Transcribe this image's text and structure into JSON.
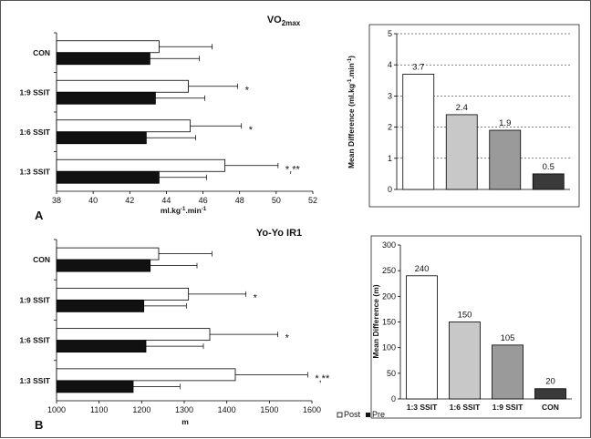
{
  "titles": {
    "top_main": "VO",
    "top_sub": "2max",
    "bottom": "Yo-Yo IR1"
  },
  "panels": {
    "a": "A",
    "b": "B"
  },
  "legend": {
    "post": "Post",
    "pre": "Pre"
  },
  "axis_labels": {
    "tl_x_a": "ml.kg",
    "tl_x_sup1": "-1",
    "tl_x_b": ".min",
    "tl_x_sup2": "-1",
    "bl_x": "m",
    "tr_y_a": "Mean Difference (ml.kg",
    "tr_y_sup1": "-1",
    "tr_y_b": ".min",
    "tr_y_sup2": "-1",
    "tr_y_c": ")",
    "br_y": "Mean Difference (m)"
  },
  "colors": {
    "post": "#ffffff",
    "pre": "#111111",
    "edge": "#000000"
  },
  "chart_data": [
    {
      "type": "bar",
      "orientation": "horizontal",
      "title": "VO2max",
      "xlabel": "ml.kg-1.min-1",
      "xlim": [
        38,
        52
      ],
      "xticks": [
        38,
        40,
        42,
        44,
        46,
        48,
        50,
        52
      ],
      "categories": [
        "CON",
        "1:9 SSIT",
        "1:6 SSIT",
        "1:3 SSIT"
      ],
      "series": [
        {
          "name": "Post",
          "values": [
            43.6,
            45.2,
            45.3,
            47.2
          ],
          "errors": [
            2.9,
            2.7,
            2.8,
            2.9
          ]
        },
        {
          "name": "Pre",
          "values": [
            43.1,
            43.4,
            42.9,
            43.6
          ],
          "errors": [
            2.7,
            2.7,
            2.7,
            2.6
          ]
        }
      ],
      "annotations": [
        "",
        "*",
        "*",
        "*,**"
      ]
    },
    {
      "type": "bar",
      "ylabel": "Mean Difference (ml.kg-1.min-1)",
      "ylim": [
        0,
        5
      ],
      "yticks": [
        0,
        1,
        2,
        3,
        4,
        5
      ],
      "grid": true,
      "categories": [
        "1:3 SSIT",
        "1:6 SSIT",
        "1:9 SSIT",
        "CON"
      ],
      "values": [
        3.7,
        2.4,
        1.9,
        0.5
      ],
      "data_labels": [
        "3.7",
        "2.4",
        "1.9",
        "0.5"
      ],
      "bar_colors": [
        "#ffffff",
        "#c8c8c8",
        "#9a9a9a",
        "#3a3a3a"
      ]
    },
    {
      "type": "bar",
      "orientation": "horizontal",
      "title": "Yo-Yo IR1",
      "xlabel": "m",
      "xlim": [
        1000,
        1600
      ],
      "xticks": [
        1000,
        1100,
        1200,
        1300,
        1400,
        1500,
        1600
      ],
      "categories": [
        "CON",
        "1:9 SSIT",
        "1:6 SSIT",
        "1:3 SSIT"
      ],
      "series": [
        {
          "name": "Post",
          "values": [
            1240,
            1310,
            1360,
            1420
          ],
          "errors": [
            125,
            135,
            160,
            170
          ]
        },
        {
          "name": "Pre",
          "values": [
            1220,
            1205,
            1210,
            1180
          ],
          "errors": [
            110,
            100,
            135,
            110
          ]
        }
      ],
      "annotations": [
        "",
        "*",
        "*",
        "*,**"
      ]
    },
    {
      "type": "bar",
      "ylabel": "Mean Difference (m)",
      "ylim": [
        0,
        300
      ],
      "yticks": [
        0,
        50,
        100,
        150,
        200,
        250,
        300
      ],
      "grid": false,
      "categories": [
        "1:3 SSIT",
        "1:6 SSIT",
        "1:9 SSIT",
        "CON"
      ],
      "values": [
        240,
        150,
        105,
        20
      ],
      "data_labels": [
        "240",
        "150",
        "105",
        "20"
      ],
      "bar_colors": [
        "#ffffff",
        "#c8c8c8",
        "#9a9a9a",
        "#3a3a3a"
      ]
    }
  ]
}
